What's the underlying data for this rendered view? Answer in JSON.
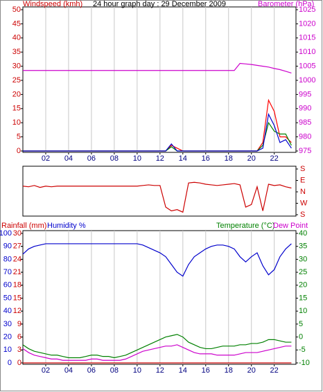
{
  "chart_data": [
    {
      "type": "line",
      "title": "24 hour graph day : 29 December 2009",
      "y_label": "Windspeed (kmh)",
      "y2_label": "Barometer (hPa)",
      "y_color": "#cc0000",
      "y2_color": "#cc00cc",
      "x": [
        0,
        0.5,
        1,
        1.5,
        2,
        2.5,
        3,
        3.5,
        4,
        4.5,
        5,
        5.5,
        6,
        6.5,
        7,
        7.5,
        8,
        8.5,
        9,
        9.5,
        10,
        10.5,
        11,
        11.5,
        12,
        12.5,
        13,
        13.5,
        14,
        14.5,
        15,
        15.5,
        16,
        16.5,
        17,
        17.5,
        18,
        18.5,
        19,
        19.5,
        20,
        20.5,
        21,
        21.5,
        22,
        22.5,
        23,
        23.5
      ],
      "xlim": [
        0,
        23.9
      ],
      "xticks": [
        {
          "value": 2,
          "label": "02"
        },
        {
          "value": 4,
          "label": "04"
        },
        {
          "value": 6,
          "label": "06"
        },
        {
          "value": 8,
          "label": "08"
        },
        {
          "value": 10,
          "label": "10"
        },
        {
          "value": 12,
          "label": "12"
        },
        {
          "value": 14,
          "label": "14"
        },
        {
          "value": 16,
          "label": "16"
        },
        {
          "value": 18,
          "label": "18"
        },
        {
          "value": 20,
          "label": "20"
        },
        {
          "value": 22,
          "label": "22"
        }
      ],
      "ylim": [
        0,
        50
      ],
      "yticks": [
        0,
        5,
        10,
        15,
        20,
        25,
        30,
        35,
        40,
        45,
        50
      ],
      "y2lim": [
        975,
        1025
      ],
      "y2ticks": [
        975,
        980,
        985,
        990,
        995,
        1000,
        1005,
        1010,
        1015,
        1020,
        1025
      ],
      "grid": true,
      "series": [
        {
          "color": "#ff0000",
          "values": [
            0,
            0,
            0,
            0,
            0,
            0,
            0,
            0,
            0,
            0,
            0,
            0,
            0,
            0,
            0,
            0,
            0,
            0,
            0,
            0,
            0,
            0,
            0,
            0,
            0,
            0,
            2,
            1,
            0,
            0,
            0,
            0,
            0,
            0,
            0,
            0,
            0,
            0,
            0,
            0,
            0,
            0,
            3,
            18,
            14,
            5,
            5,
            3
          ]
        },
        {
          "color": "#008000",
          "values": [
            0,
            0,
            0,
            0,
            0,
            0,
            0,
            0,
            0,
            0,
            0,
            0,
            0,
            0,
            0,
            0,
            0,
            0,
            0,
            0,
            0,
            0,
            0,
            0,
            0,
            0,
            1.5,
            0,
            0,
            0,
            0,
            0,
            0,
            0,
            0,
            0,
            0,
            0,
            0,
            0,
            0,
            0,
            2,
            10,
            7,
            6,
            6,
            2
          ]
        },
        {
          "color": "#0000cc",
          "values": [
            0,
            0,
            0,
            0,
            0,
            0,
            0,
            0,
            0,
            0,
            0,
            0,
            0,
            0,
            0,
            0,
            0,
            0,
            0,
            0,
            0,
            0,
            0,
            0,
            0,
            0,
            2.5,
            0,
            0,
            0,
            0,
            0,
            0,
            0,
            0,
            0,
            0,
            0,
            0,
            0,
            0,
            0,
            1,
            13,
            9,
            3,
            4,
            1
          ]
        },
        {
          "color": "#cc00cc",
          "axis": "y2",
          "values": [
            1003.5,
            1003.5,
            1003.5,
            1003.5,
            1003.5,
            1003.5,
            1003.5,
            1003.5,
            1003.5,
            1003.5,
            1003.5,
            1003.5,
            1003.5,
            1003.5,
            1003.5,
            1003.5,
            1003.5,
            1003.5,
            1003.5,
            1003.5,
            1003.5,
            1003.5,
            1003.5,
            1003.5,
            1003.5,
            1003.5,
            1003.5,
            1003.5,
            1003.5,
            1003.5,
            1003.5,
            1003.5,
            1003.5,
            1003.5,
            1003.5,
            1003.5,
            1003.5,
            1003.5,
            1006,
            1005.8,
            1005.6,
            1005.3,
            1005,
            1004.7,
            1004.2,
            1003.8,
            1003.2,
            1002.6
          ]
        }
      ]
    },
    {
      "type": "line",
      "y2_color": "#cc0000",
      "x": [
        0,
        0.5,
        1,
        1.5,
        2,
        2.5,
        3,
        3.5,
        4,
        4.5,
        5,
        5.5,
        6,
        6.5,
        7,
        7.5,
        8,
        8.5,
        9,
        9.5,
        10,
        10.5,
        11,
        11.5,
        12,
        12.5,
        13,
        13.5,
        14,
        14.5,
        15,
        15.5,
        16,
        16.5,
        17,
        17.5,
        18,
        18.5,
        19,
        19.5,
        20,
        20.5,
        21,
        21.5,
        22,
        22.5,
        23,
        23.5
      ],
      "xlim": [
        0,
        23.9
      ],
      "y2lim": [
        -180,
        180
      ],
      "y2ticks": [
        {
          "value": 180,
          "label": "S"
        },
        {
          "value": 90,
          "label": "E"
        },
        {
          "value": 0,
          "label": "N"
        },
        {
          "value": -90,
          "label": "W"
        },
        {
          "value": -180,
          "label": "S"
        }
      ],
      "series": [
        {
          "color": "#cc0000",
          "axis": "y2",
          "values": [
            45,
            40,
            50,
            35,
            45,
            40,
            45,
            45,
            45,
            45,
            45,
            45,
            45,
            45,
            45,
            45,
            45,
            45,
            45,
            45,
            45,
            50,
            55,
            50,
            50,
            -120,
            -150,
            -140,
            -160,
            70,
            75,
            70,
            60,
            55,
            50,
            55,
            60,
            65,
            55,
            -120,
            -100,
            40,
            -150,
            60,
            50,
            55,
            40,
            30
          ]
        }
      ]
    },
    {
      "type": "line",
      "y_color": "#0000cc",
      "y2_color": "#008000",
      "y3_color": "#cc0000",
      "x": [
        0,
        0.5,
        1,
        1.5,
        2,
        2.5,
        3,
        3.5,
        4,
        4.5,
        5,
        5.5,
        6,
        6.5,
        7,
        7.5,
        8,
        8.5,
        9,
        9.5,
        10,
        10.5,
        11,
        11.5,
        12,
        12.5,
        13,
        13.5,
        14,
        14.5,
        15,
        15.5,
        16,
        16.5,
        17,
        17.5,
        18,
        18.5,
        19,
        19.5,
        20,
        20.5,
        21,
        21.5,
        22,
        22.5,
        23,
        23.5
      ],
      "xlim": [
        0,
        23.9
      ],
      "xticks": [
        {
          "value": 2,
          "label": "02"
        },
        {
          "value": 4,
          "label": "04"
        },
        {
          "value": 6,
          "label": "06"
        },
        {
          "value": 8,
          "label": "08"
        },
        {
          "value": 10,
          "label": "10"
        },
        {
          "value": 12,
          "label": "12"
        },
        {
          "value": 14,
          "label": "14"
        },
        {
          "value": 16,
          "label": "16"
        },
        {
          "value": 18,
          "label": "18"
        },
        {
          "value": 20,
          "label": "20"
        },
        {
          "value": 22,
          "label": "22"
        }
      ],
      "ylim": [
        0,
        100
      ],
      "yticks": [
        0,
        10,
        20,
        30,
        40,
        50,
        60,
        70,
        80,
        90,
        100
      ],
      "y3lim": [
        0,
        30
      ],
      "y3ticks": [
        0,
        3,
        6,
        9,
        12,
        15,
        18,
        21,
        24,
        27,
        30
      ],
      "y2lim": [
        -10,
        40
      ],
      "y2ticks": [
        -10,
        -5,
        0,
        5,
        10,
        15,
        20,
        25,
        30,
        35,
        40
      ],
      "grid": true,
      "series": [
        {
          "name": "Rainfall (mm)",
          "color": "#cc0000",
          "axis": "y3",
          "values": [
            0,
            0,
            0,
            0,
            0,
            0,
            0,
            0,
            0,
            0,
            0,
            0,
            0,
            0,
            0,
            0,
            0,
            0,
            0,
            0,
            0,
            0,
            0,
            0,
            0,
            0,
            0,
            0,
            0,
            0,
            0,
            0,
            0,
            0,
            0,
            0,
            0,
            0,
            0,
            0,
            0,
            0,
            0,
            0,
            0,
            0,
            0,
            0
          ]
        },
        {
          "name": "Humidity %",
          "color": "#0000cc",
          "values": [
            84,
            88,
            90,
            91,
            92,
            92,
            92,
            92,
            92,
            92,
            92,
            92,
            92,
            92,
            92,
            92,
            92,
            92,
            92,
            92,
            92,
            91,
            89,
            87,
            85,
            82,
            76,
            70,
            67,
            76,
            82,
            85,
            88,
            90,
            91,
            91,
            90,
            88,
            82,
            78,
            82,
            85,
            75,
            68,
            72,
            82,
            88,
            92
          ]
        },
        {
          "name": "Temperature (°C)",
          "color": "#008000",
          "axis": "y2",
          "values": [
            -3,
            -4.5,
            -5.5,
            -6,
            -6.5,
            -7,
            -7,
            -7.5,
            -8,
            -8,
            -8,
            -7.5,
            -7,
            -7,
            -7.5,
            -7.5,
            -8,
            -7.5,
            -7,
            -6,
            -5,
            -4,
            -3,
            -2,
            -1,
            0,
            0.5,
            1,
            0,
            -2,
            -3,
            -4,
            -4.5,
            -4.5,
            -4,
            -3.5,
            -3.5,
            -3.5,
            -3,
            -3,
            -2.5,
            -2.5,
            -2,
            -1,
            -1,
            -1.5,
            -2,
            -2
          ]
        },
        {
          "name": "Dew Point",
          "color": "#cc00cc",
          "axis": "y2",
          "values": [
            -4.5,
            -6,
            -7,
            -7.5,
            -8,
            -8.5,
            -8.5,
            -9,
            -9,
            -9,
            -9,
            -9,
            -8.5,
            -8.5,
            -9,
            -9,
            -9,
            -9,
            -8.5,
            -7.5,
            -6.5,
            -5.5,
            -5,
            -4.5,
            -4,
            -3.5,
            -3.5,
            -3,
            -4,
            -5,
            -6,
            -6.5,
            -6.5,
            -6.5,
            -7,
            -7,
            -7,
            -7,
            -6.5,
            -6,
            -6,
            -6,
            -5.5,
            -5,
            -4.5,
            -4,
            -3.5,
            -3.5
          ]
        }
      ]
    }
  ]
}
